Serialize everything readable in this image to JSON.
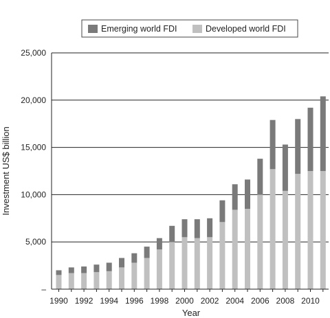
{
  "chart_data": {
    "type": "bar",
    "stacked": true,
    "xlabel": "Year",
    "ylabel": "Investment US$ billion",
    "ylim": [
      0,
      25000
    ],
    "y_ticks": [
      0,
      5000,
      10000,
      15000,
      20000,
      25000
    ],
    "y_tick_labels": [
      "–",
      "5,000",
      "10,000",
      "15,000",
      "20,000",
      "25,000"
    ],
    "x_tick_labels": [
      "1990",
      "1992",
      "1994",
      "1996",
      "1998",
      "2000",
      "2002",
      "2004",
      "2006",
      "2008",
      "2010"
    ],
    "grid": "horizontal",
    "legend_position": "top",
    "categories": [
      1990,
      1991,
      1992,
      1993,
      1994,
      1995,
      1996,
      1997,
      1998,
      1999,
      2000,
      2001,
      2002,
      2003,
      2004,
      2005,
      2006,
      2007,
      2008,
      2009,
      2010,
      2011
    ],
    "series": [
      {
        "name": "Developed world FDI",
        "color": "#c0c0c0",
        "values": [
          1500,
          1700,
          1700,
          1800,
          1900,
          2300,
          2800,
          3300,
          4200,
          5000,
          5500,
          5400,
          5500,
          7100,
          8400,
          8500,
          10000,
          12700,
          10400,
          12200,
          12500,
          12500
        ]
      },
      {
        "name": "Emerging world FDI",
        "color": "#7a7a7a",
        "values": [
          500,
          600,
          700,
          800,
          900,
          1000,
          1000,
          1200,
          1200,
          1700,
          1900,
          2000,
          2000,
          2300,
          2700,
          3100,
          3800,
          5200,
          4900,
          5800,
          6700,
          7900
        ]
      }
    ]
  }
}
